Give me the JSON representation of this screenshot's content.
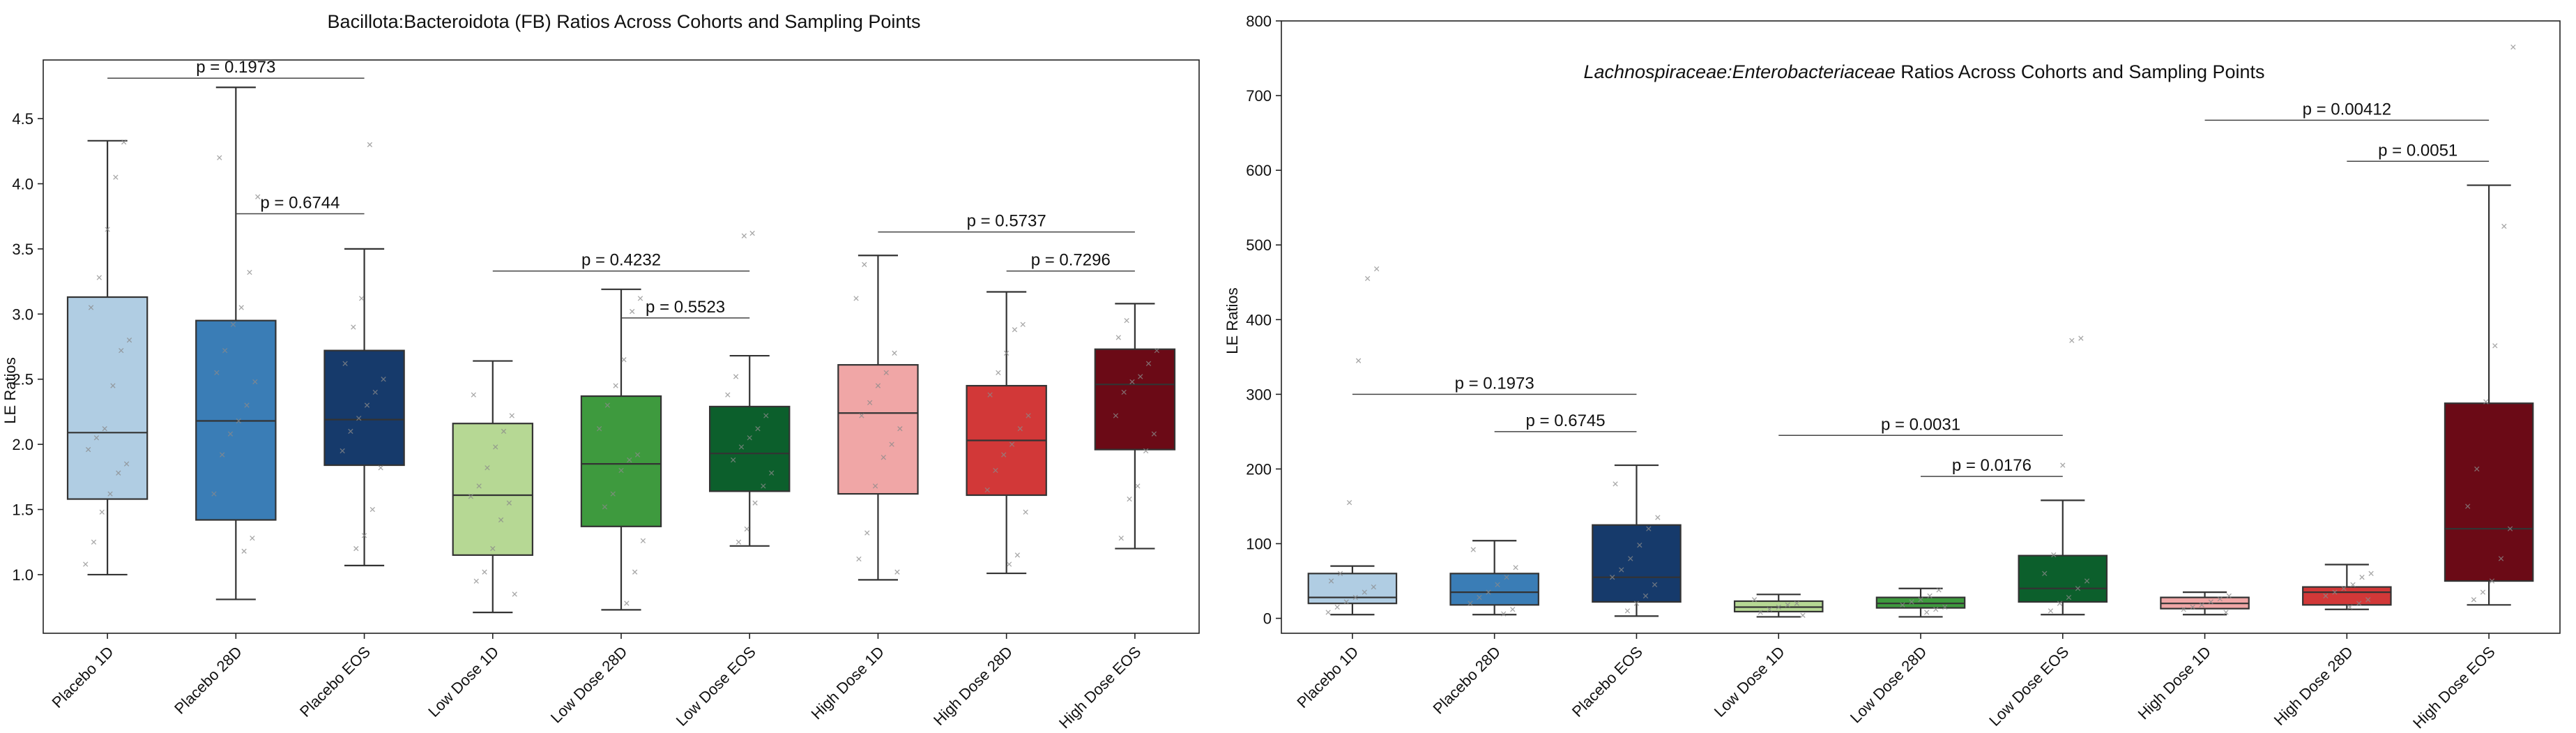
{
  "chart_data": [
    {
      "type": "box",
      "title": "Bacillota:Bacteroidota (FB)  Ratios Across Cohorts and Sampling Points",
      "title_italic": false,
      "xlabel": "",
      "ylabel": "LE Ratios",
      "ylim": [
        0.55,
        4.95
      ],
      "yticks": [
        1.0,
        1.5,
        2.0,
        2.5,
        3.0,
        3.5,
        4.0,
        4.5
      ],
      "ytick_labels": [
        "1.0",
        "1.5",
        "2.0",
        "2.5",
        "3.0",
        "3.5",
        "4.0",
        "4.5"
      ],
      "categories": [
        "Placebo 1D",
        "Placebo 28D",
        "Placebo EOS",
        "Low Dose 1D",
        "Low Dose 28D",
        "Low Dose EOS",
        "High Dose 1D",
        "High Dose 28D",
        "High Dose EOS"
      ],
      "colors": [
        "#b0cde3",
        "#3a7db6",
        "#163a6b",
        "#b6d894",
        "#3e9a3e",
        "#0c5f2c",
        "#f0a6a6",
        "#d23838",
        "#6b0a16"
      ],
      "boxes": [
        {
          "whisker_low": 1.0,
          "q1": 1.58,
          "median": 2.09,
          "q3": 3.13,
          "whisker_high": 4.33
        },
        {
          "whisker_low": 0.81,
          "q1": 1.42,
          "median": 2.18,
          "q3": 2.95,
          "whisker_high": 4.74
        },
        {
          "whisker_low": 1.07,
          "q1": 1.84,
          "median": 2.19,
          "q3": 2.72,
          "whisker_high": 3.5
        },
        {
          "whisker_low": 0.71,
          "q1": 1.15,
          "median": 1.61,
          "q3": 2.16,
          "whisker_high": 2.64
        },
        {
          "whisker_low": 0.73,
          "q1": 1.37,
          "median": 1.85,
          "q3": 2.37,
          "whisker_high": 3.19
        },
        {
          "whisker_low": 1.22,
          "q1": 1.64,
          "median": 1.93,
          "q3": 2.29,
          "whisker_high": 2.68
        },
        {
          "whisker_low": 0.96,
          "q1": 1.62,
          "median": 2.24,
          "q3": 2.61,
          "whisker_high": 3.45
        },
        {
          "whisker_low": 1.01,
          "q1": 1.61,
          "median": 2.03,
          "q3": 2.45,
          "whisker_high": 3.17
        },
        {
          "whisker_low": 1.2,
          "q1": 1.96,
          "median": 2.46,
          "q3": 2.73,
          "whisker_high": 3.08
        }
      ],
      "points": [
        [
          1.08,
          1.25,
          1.48,
          1.62,
          1.78,
          1.85,
          1.96,
          2.05,
          2.12,
          2.45,
          2.72,
          2.8,
          3.05,
          3.28,
          3.65,
          4.05,
          4.32
        ],
        [
          1.18,
          1.28,
          1.62,
          1.92,
          2.08,
          2.18,
          2.3,
          2.48,
          2.55,
          2.72,
          2.92,
          3.05,
          3.32,
          3.9,
          4.2
        ],
        [
          1.2,
          1.3,
          1.5,
          1.82,
          1.95,
          2.1,
          2.2,
          2.3,
          2.4,
          2.5,
          2.62,
          2.9,
          3.12,
          4.3
        ],
        [
          0.85,
          0.95,
          1.02,
          1.2,
          1.42,
          1.55,
          1.6,
          1.68,
          1.82,
          1.98,
          2.1,
          2.22,
          2.38
        ],
        [
          0.78,
          1.02,
          1.26,
          1.52,
          1.62,
          1.8,
          1.88,
          1.92,
          2.12,
          2.3,
          2.45,
          2.65,
          3.02,
          3.12
        ],
        [
          1.25,
          1.35,
          1.55,
          1.68,
          1.78,
          1.88,
          1.98,
          2.05,
          2.12,
          2.22,
          2.38,
          2.52,
          3.6,
          3.62
        ],
        [
          1.02,
          1.12,
          1.32,
          1.68,
          1.9,
          2.0,
          2.12,
          2.22,
          2.32,
          2.45,
          2.55,
          2.7,
          3.12,
          3.38
        ],
        [
          1.08,
          1.15,
          1.48,
          1.65,
          1.8,
          1.92,
          2.0,
          2.12,
          2.22,
          2.38,
          2.55,
          2.7,
          2.88,
          2.92
        ],
        [
          1.28,
          1.58,
          1.68,
          1.95,
          2.08,
          2.22,
          2.4,
          2.48,
          2.52,
          2.62,
          2.72,
          2.82,
          2.95
        ]
      ],
      "comparisons": [
        {
          "from": 0,
          "to": 2,
          "y": 4.81,
          "label": "p = 0.1973"
        },
        {
          "from": 1,
          "to": 2,
          "y": 3.77,
          "label": "p = 0.6744"
        },
        {
          "from": 3,
          "to": 5,
          "y": 3.33,
          "label": "p = 0.4232"
        },
        {
          "from": 4,
          "to": 5,
          "y": 2.97,
          "label": "p = 0.5523"
        },
        {
          "from": 6,
          "to": 8,
          "y": 3.63,
          "label": "p = 0.5737"
        },
        {
          "from": 7,
          "to": 8,
          "y": 3.33,
          "label": "p = 0.7296"
        }
      ]
    },
    {
      "type": "box",
      "title_italic_part": "Lachnospiraceae:Enterobacteriaceae",
      "title_rest": " Ratios Across Cohorts and Sampling Points",
      "xlabel": "",
      "ylabel": "LE Ratios",
      "ylim": [
        -20,
        800
      ],
      "yticks": [
        0,
        100,
        200,
        300,
        400,
        500,
        600,
        700,
        800
      ],
      "ytick_labels": [
        "0",
        "100",
        "200",
        "300",
        "400",
        "500",
        "600",
        "700",
        "800"
      ],
      "categories": [
        "Placebo 1D",
        "Placebo 28D",
        "Placebo EOS",
        "Low Dose 1D",
        "Low Dose 28D",
        "Low Dose EOS",
        "High Dose 1D",
        "High Dose 28D",
        "High Dose EOS"
      ],
      "colors": [
        "#b0cde3",
        "#3a7db6",
        "#163a6b",
        "#b6d894",
        "#3e9a3e",
        "#0c5f2c",
        "#f0a6a6",
        "#d23838",
        "#6b0a16"
      ],
      "boxes": [
        {
          "whisker_low": 5,
          "q1": 20,
          "median": 28,
          "q3": 60,
          "whisker_high": 70
        },
        {
          "whisker_low": 5,
          "q1": 18,
          "median": 35,
          "q3": 60,
          "whisker_high": 104
        },
        {
          "whisker_low": 3,
          "q1": 22,
          "median": 55,
          "q3": 125,
          "whisker_high": 205
        },
        {
          "whisker_low": 2,
          "q1": 9,
          "median": 15,
          "q3": 23,
          "whisker_high": 32
        },
        {
          "whisker_low": 2,
          "q1": 14,
          "median": 20,
          "q3": 28,
          "whisker_high": 40
        },
        {
          "whisker_low": 5,
          "q1": 22,
          "median": 40,
          "q3": 84,
          "whisker_high": 158
        },
        {
          "whisker_low": 5,
          "q1": 13,
          "median": 20,
          "q3": 28,
          "whisker_high": 35
        },
        {
          "whisker_low": 12,
          "q1": 18,
          "median": 35,
          "q3": 42,
          "whisker_high": 72
        },
        {
          "whisker_low": 18,
          "q1": 50,
          "median": 120,
          "q3": 288,
          "whisker_high": 580
        }
      ],
      "points": [
        [
          8,
          15,
          22,
          28,
          35,
          42,
          50,
          60,
          155,
          345,
          455,
          468
        ],
        [
          6,
          12,
          20,
          28,
          35,
          45,
          55,
          68,
          92
        ],
        [
          10,
          20,
          30,
          45,
          55,
          65,
          80,
          98,
          120,
          135,
          180
        ],
        [
          4,
          8,
          12,
          15,
          18,
          20,
          25
        ],
        [
          8,
          12,
          15,
          18,
          22,
          25,
          30,
          38
        ],
        [
          10,
          20,
          28,
          40,
          50,
          60,
          85,
          205,
          372,
          375
        ],
        [
          8,
          12,
          15,
          18,
          22,
          26,
          30
        ],
        [
          15,
          20,
          25,
          30,
          35,
          40,
          45,
          55,
          60
        ],
        [
          25,
          35,
          50,
          80,
          120,
          150,
          200,
          290,
          365,
          525,
          765
        ]
      ],
      "comparisons": [
        {
          "from": 0,
          "to": 2,
          "y": 300,
          "label": "p = 0.1973"
        },
        {
          "from": 1,
          "to": 2,
          "y": 250,
          "label": "p = 0.6745"
        },
        {
          "from": 3,
          "to": 5,
          "y": 245,
          "label": "p = 0.0031"
        },
        {
          "from": 4,
          "to": 5,
          "y": 190,
          "label": "p = 0.0176"
        },
        {
          "from": 6,
          "to": 8,
          "y": 667,
          "label": "p = 0.00412"
        },
        {
          "from": 7,
          "to": 8,
          "y": 612,
          "label": "p = 0.0051"
        }
      ]
    }
  ]
}
